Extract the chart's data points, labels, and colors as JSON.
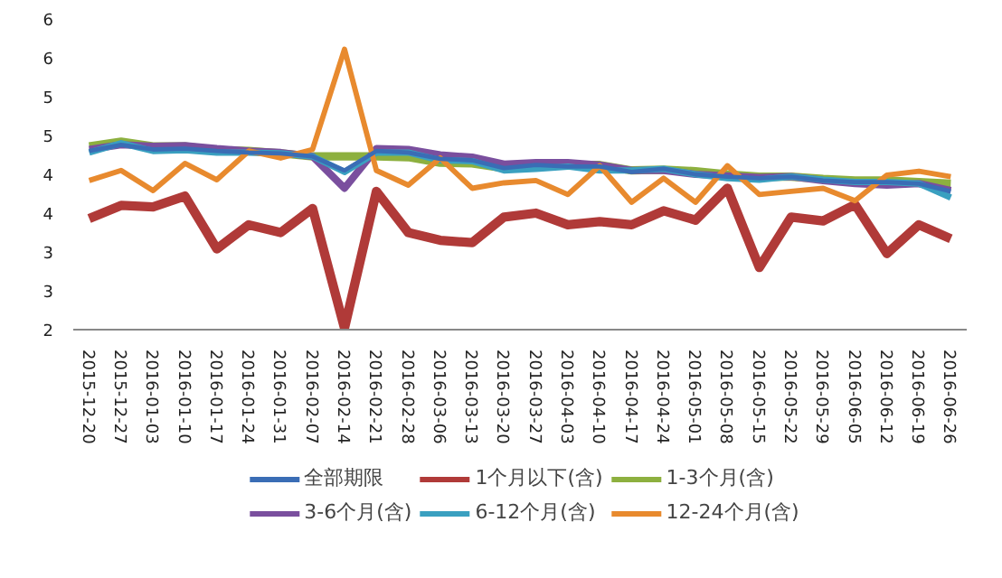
{
  "chart_data": {
    "type": "line",
    "categories": [
      "2015-12-20",
      "2015-12-27",
      "2016-01-03",
      "2016-01-10",
      "2016-01-17",
      "2016-01-24",
      "2016-01-31",
      "2016-02-07",
      "2016-02-14",
      "2016-02-21",
      "2016-02-28",
      "2016-03-06",
      "2016-03-13",
      "2016-03-20",
      "2016-03-27",
      "2016-04-03",
      "2016-04-10",
      "2016-04-17",
      "2016-04-24",
      "2016-05-01",
      "2016-05-08",
      "2016-05-15",
      "2016-05-22",
      "2016-05-29",
      "2016-06-05",
      "2016-06-12",
      "2016-06-19",
      "2016-06-26"
    ],
    "series": [
      {
        "name": "全部期限",
        "color": "#3a6db5",
        "values": [
          4.3,
          4.38,
          4.32,
          4.33,
          4.3,
          4.28,
          4.27,
          4.23,
          4.05,
          4.3,
          4.28,
          4.2,
          4.18,
          4.08,
          4.12,
          4.1,
          4.1,
          4.03,
          4.07,
          4.0,
          3.97,
          3.95,
          3.97,
          3.92,
          3.9,
          3.9,
          3.88,
          3.78
        ]
      },
      {
        "name": "1个月以下(含)",
        "color": "#b03a38",
        "values": [
          3.43,
          3.6,
          3.58,
          3.72,
          3.04,
          3.35,
          3.25,
          3.56,
          2.02,
          3.78,
          3.25,
          3.15,
          3.12,
          3.45,
          3.5,
          3.35,
          3.39,
          3.35,
          3.53,
          3.41,
          3.82,
          2.8,
          3.45,
          3.4,
          3.61,
          2.98,
          3.35,
          3.17
        ]
      },
      {
        "name": "1-3个月(含)",
        "color": "#8db03f",
        "values": [
          4.36,
          4.42,
          4.36,
          4.36,
          4.31,
          4.3,
          4.27,
          4.23,
          4.23,
          4.23,
          4.22,
          4.15,
          4.14,
          4.08,
          4.12,
          4.12,
          4.12,
          4.05,
          4.06,
          4.04,
          4.0,
          3.97,
          3.97,
          3.94,
          3.92,
          3.92,
          3.9,
          3.88
        ]
      },
      {
        "name": "3-6个月(含)",
        "color": "#7a4f9e",
        "values": [
          4.32,
          4.38,
          4.36,
          4.37,
          4.33,
          4.3,
          4.28,
          4.23,
          3.82,
          4.33,
          4.32,
          4.25,
          4.22,
          4.13,
          4.15,
          4.15,
          4.12,
          4.05,
          4.05,
          4.0,
          3.98,
          3.96,
          3.97,
          3.92,
          3.88,
          3.86,
          3.88,
          3.79
        ]
      },
      {
        "name": "6-12个月(含)",
        "color": "#3aa0c0",
        "values": [
          4.28,
          4.4,
          4.3,
          4.31,
          4.28,
          4.28,
          4.27,
          4.23,
          4.03,
          4.28,
          4.28,
          4.18,
          4.17,
          4.05,
          4.07,
          4.1,
          4.05,
          4.05,
          4.07,
          4.0,
          3.95,
          3.93,
          3.97,
          3.93,
          3.9,
          3.9,
          3.88,
          3.7
        ]
      },
      {
        "name": "12-24个月(含)",
        "color": "#e88a2e",
        "values": [
          3.92,
          4.05,
          3.79,
          4.14,
          3.93,
          4.3,
          4.21,
          4.32,
          5.61,
          4.05,
          3.86,
          4.21,
          3.82,
          3.89,
          3.92,
          3.74,
          4.11,
          3.64,
          3.95,
          3.64,
          4.11,
          3.74,
          3.78,
          3.82,
          3.66,
          3.99,
          4.04,
          3.97
        ]
      }
    ],
    "ylim": [
      2,
      6
    ],
    "yticks": [
      2,
      {
        "value": 2.5,
        "label": "3"
      },
      3,
      {
        "value": 3.5,
        "label": "4"
      },
      4,
      {
        "value": 4.5,
        "label": "5"
      },
      5,
      {
        "value": 5.5,
        "label": "6"
      },
      6
    ],
    "grid": false,
    "legend": "bottom",
    "line_style": "solid"
  }
}
